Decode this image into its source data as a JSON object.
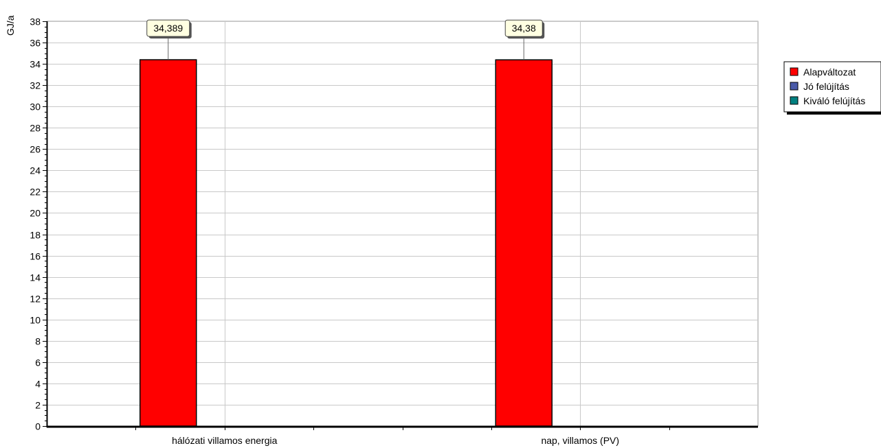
{
  "chart_data": {
    "type": "bar",
    "title": "",
    "xlabel": "",
    "ylabel": "GJ/a",
    "ylim": [
      0,
      38
    ],
    "ytick_step": 2,
    "grid": true,
    "legend_position": "right",
    "categories": [
      "hálózati villamos energia",
      "nap, villamos (PV)"
    ],
    "series": [
      {
        "name": "Alapváltozat",
        "color": "#ff0000",
        "values": [
          34.389,
          34.38
        ],
        "labels": [
          "34,389",
          "34,38"
        ]
      },
      {
        "name": "Jó felújítás",
        "color": "#4a5aa8",
        "values": [
          null,
          null
        ],
        "labels": [
          "",
          ""
        ]
      },
      {
        "name": "Kiváló felújítás",
        "color": "#008080",
        "values": [
          null,
          null
        ],
        "labels": [
          "",
          ""
        ]
      }
    ]
  }
}
